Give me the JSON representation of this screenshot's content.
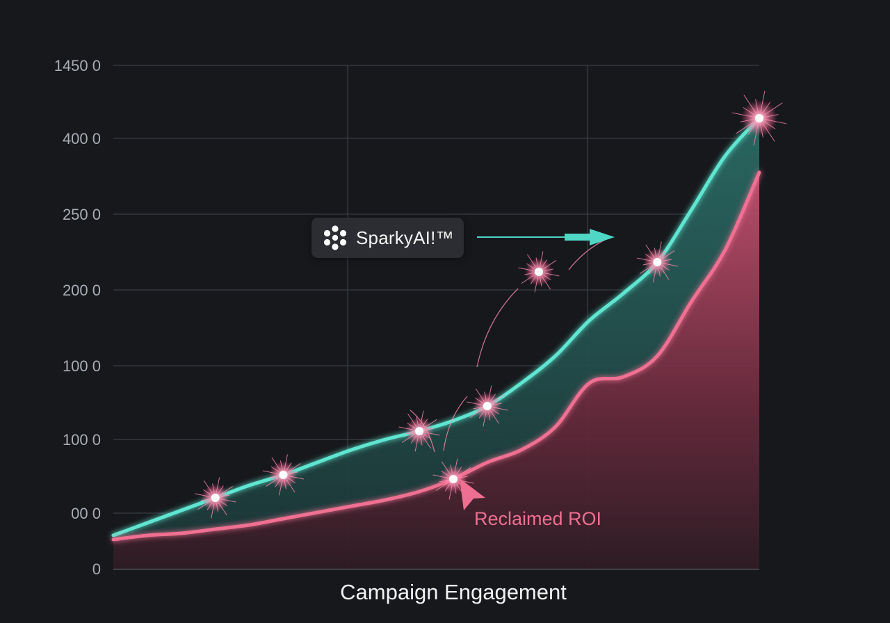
{
  "chart_data": {
    "type": "area",
    "xlabel": "Campaign Engagement",
    "ylabel": "",
    "yticks": [
      "0",
      "00 0",
      "100 0",
      "100 0",
      "200 0",
      "250 0",
      "400 0",
      "1450 0"
    ],
    "grid": true,
    "series": [
      {
        "color": "#5fe6d0",
        "values": [
          0.8,
          1.1,
          1.4,
          1.7,
          2.0,
          2.25,
          2.55,
          2.85,
          3.1,
          3.3,
          3.55,
          3.9,
          4.45,
          5.1,
          5.95,
          6.6,
          7.35,
          8.6,
          9.9,
          10.8
        ]
      },
      {
        "color": "#ef6f92",
        "values": [
          0.7,
          0.8,
          0.85,
          0.95,
          1.05,
          1.2,
          1.35,
          1.5,
          1.65,
          1.85,
          2.15,
          2.55,
          2.85,
          3.4,
          4.45,
          4.6,
          5.1,
          6.4,
          7.65,
          9.5
        ]
      }
    ],
    "highlighted_points": [
      {
        "series": 0,
        "index": 3
      },
      {
        "series": 0,
        "index": 5
      },
      {
        "series": 0,
        "index": 9
      },
      {
        "series": 0,
        "index": 11
      },
      {
        "series": 0,
        "index": 16
      },
      {
        "series": 0,
        "index": 19
      },
      {
        "series": 1,
        "index": 10
      }
    ]
  },
  "callout": {
    "brand_label": "SparkyAI!™",
    "brand_icon": "molecule-icon",
    "roi_label": "Reclaimed ROI"
  }
}
